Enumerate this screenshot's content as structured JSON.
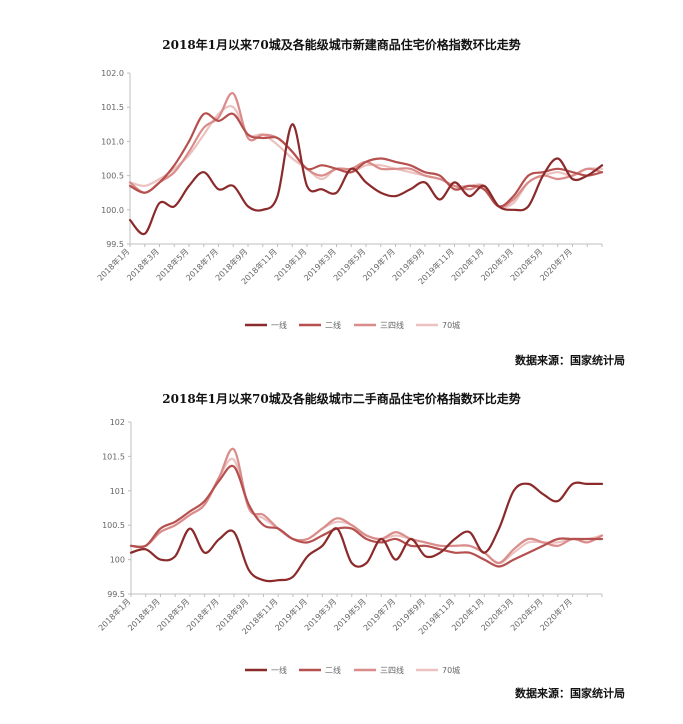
{
  "chart_data": [
    {
      "type": "line",
      "title": "2018年1月以来70城及各能级城市新建商品住宅价格指数环比走势",
      "source": "数据来源：国家统计局",
      "ylim": [
        99.5,
        102.0
      ],
      "yticks": [
        "102.0",
        "101.5",
        "101.0",
        "100.5",
        "100.0",
        "99.5"
      ],
      "ytick_values": [
        102.0,
        101.5,
        101.0,
        100.5,
        100.0,
        99.5
      ],
      "grid": false,
      "legend_position": "bottom",
      "x": [
        "2018年1月",
        "2018年2月",
        "2018年3月",
        "2018年4月",
        "2018年5月",
        "2018年6月",
        "2018年7月",
        "2018年8月",
        "2018年9月",
        "2018年10月",
        "2018年11月",
        "2018年12月",
        "2019年1月",
        "2019年2月",
        "2019年3月",
        "2019年4月",
        "2019年5月",
        "2019年6月",
        "2019年7月",
        "2019年8月",
        "2019年9月",
        "2019年10月",
        "2019年11月",
        "2019年12月",
        "2020年1月",
        "2020年2月",
        "2020年3月",
        "2020年4月",
        "2020年5月",
        "2020年6月",
        "2020年7月",
        "2020年8月",
        "2020年9月"
      ],
      "xtick_labels": [
        "2018年1月",
        "2018年3月",
        "2018年5月",
        "2018年7月",
        "2018年9月",
        "2018年11月",
        "2019年1月",
        "2019年3月",
        "2019年5月",
        "2019年7月",
        "2019年9月",
        "2019年11月",
        "2020年1月",
        "2020年3月",
        "2020年5月",
        "2020年7月"
      ],
      "series": [
        {
          "name": "一线",
          "color": "#8b2a2a",
          "values": [
            99.85,
            99.65,
            100.1,
            100.05,
            100.35,
            100.55,
            100.3,
            100.35,
            100.05,
            100.0,
            100.2,
            101.25,
            100.35,
            100.3,
            100.25,
            100.6,
            100.4,
            100.25,
            100.2,
            100.3,
            100.4,
            100.15,
            100.4,
            100.2,
            100.35,
            100.05,
            100.0,
            100.05,
            100.5,
            100.75,
            100.45,
            100.5,
            100.65
          ]
        },
        {
          "name": "二线",
          "color": "#b5504f",
          "values": [
            100.35,
            100.25,
            100.4,
            100.65,
            101.0,
            101.4,
            101.3,
            101.4,
            101.1,
            101.05,
            101.05,
            100.85,
            100.6,
            100.65,
            100.6,
            100.55,
            100.7,
            100.75,
            100.7,
            100.65,
            100.55,
            100.5,
            100.3,
            100.35,
            100.3,
            100.05,
            100.2,
            100.5,
            100.55,
            100.6,
            100.55,
            100.5,
            100.55
          ]
        },
        {
          "name": "三四线",
          "color": "#d98c8a",
          "values": [
            100.4,
            100.25,
            100.4,
            100.55,
            100.85,
            101.2,
            101.35,
            101.7,
            101.05,
            101.1,
            101.05,
            100.85,
            100.6,
            100.5,
            100.6,
            100.6,
            100.7,
            100.6,
            100.6,
            100.6,
            100.5,
            100.45,
            100.35,
            100.3,
            100.35,
            100.05,
            100.15,
            100.4,
            100.5,
            100.45,
            100.5,
            100.6,
            100.55
          ]
        },
        {
          "name": "70城",
          "color": "#ecc2c0",
          "values": [
            100.4,
            100.35,
            100.45,
            100.6,
            100.8,
            101.1,
            101.4,
            101.5,
            101.1,
            101.1,
            100.95,
            100.75,
            100.6,
            100.45,
            100.6,
            100.55,
            100.65,
            100.65,
            100.6,
            100.55,
            100.5,
            100.45,
            100.35,
            100.35,
            100.35,
            100.05,
            100.1,
            100.4,
            100.5,
            100.55,
            100.5,
            100.6,
            100.6
          ]
        }
      ]
    },
    {
      "type": "line",
      "title": "2018年1月以来70城及各能级城市二手商品住宅价格指数环比走势",
      "source": "数据来源：国家统计局",
      "ylim": [
        99.5,
        102
      ],
      "yticks": [
        "102",
        "101.5",
        "101",
        "100.5",
        "100",
        "99.5"
      ],
      "ytick_values": [
        102,
        101.5,
        101,
        100.5,
        100,
        99.5
      ],
      "grid": false,
      "legend_position": "bottom",
      "x": [
        "2018年1月",
        "2018年2月",
        "2018年3月",
        "2018年4月",
        "2018年5月",
        "2018年6月",
        "2018年7月",
        "2018年8月",
        "2018年9月",
        "2018年10月",
        "2018年11月",
        "2018年12月",
        "2019年1月",
        "2019年2月",
        "2019年3月",
        "2019年4月",
        "2019年5月",
        "2019年6月",
        "2019年7月",
        "2019年8月",
        "2019年9月",
        "2019年10月",
        "2019年11月",
        "2019年12月",
        "2020年1月",
        "2020年2月",
        "2020年3月",
        "2020年4月",
        "2020年5月",
        "2020年6月",
        "2020年7月",
        "2020年8月",
        "2020年9月"
      ],
      "xtick_labels": [
        "2018年1月",
        "2018年3月",
        "2018年5月",
        "2018年7月",
        "2018年9月",
        "2018年11月",
        "2019年1月",
        "2019年3月",
        "2019年5月",
        "2019年7月",
        "2019年9月",
        "2019年11月",
        "2020年1月",
        "2020年3月",
        "2020年5月",
        "2020年7月"
      ],
      "series": [
        {
          "name": "一线",
          "color": "#8b2a2a",
          "values": [
            100.1,
            100.15,
            100.0,
            100.05,
            100.45,
            100.1,
            100.3,
            100.4,
            99.85,
            99.7,
            99.7,
            99.75,
            100.05,
            100.2,
            100.45,
            99.95,
            99.95,
            100.3,
            100.0,
            100.3,
            100.05,
            100.1,
            100.3,
            100.4,
            100.1,
            100.45,
            101.0,
            101.1,
            100.95,
            100.85,
            101.1,
            101.1,
            101.1
          ]
        },
        {
          "name": "二线",
          "color": "#b5504f",
          "values": [
            100.2,
            100.2,
            100.45,
            100.55,
            100.7,
            100.85,
            101.15,
            101.35,
            100.8,
            100.5,
            100.45,
            100.3,
            100.25,
            100.35,
            100.45,
            100.45,
            100.3,
            100.25,
            100.3,
            100.2,
            100.2,
            100.15,
            100.1,
            100.1,
            100.0,
            99.9,
            100.0,
            100.1,
            100.2,
            100.3,
            100.3,
            100.3,
            100.3
          ]
        },
        {
          "name": "三四线",
          "color": "#d98c8a",
          "values": [
            100.2,
            100.2,
            100.4,
            100.5,
            100.65,
            100.8,
            101.2,
            101.6,
            100.75,
            100.65,
            100.45,
            100.3,
            100.3,
            100.45,
            100.6,
            100.5,
            100.35,
            100.3,
            100.4,
            100.3,
            100.25,
            100.2,
            100.2,
            100.2,
            100.1,
            99.95,
            100.15,
            100.3,
            100.25,
            100.2,
            100.3,
            100.25,
            100.35
          ]
        },
        {
          "name": "70城",
          "color": "#ecc2c0",
          "values": [
            100.2,
            100.2,
            100.4,
            100.5,
            100.65,
            100.8,
            101.2,
            101.45,
            100.75,
            100.6,
            100.45,
            100.3,
            100.3,
            100.45,
            100.55,
            100.5,
            100.35,
            100.3,
            100.35,
            100.3,
            100.25,
            100.2,
            100.2,
            100.2,
            100.1,
            99.95,
            100.1,
            100.25,
            100.25,
            100.25,
            100.3,
            100.3,
            100.35
          ]
        }
      ]
    }
  ]
}
